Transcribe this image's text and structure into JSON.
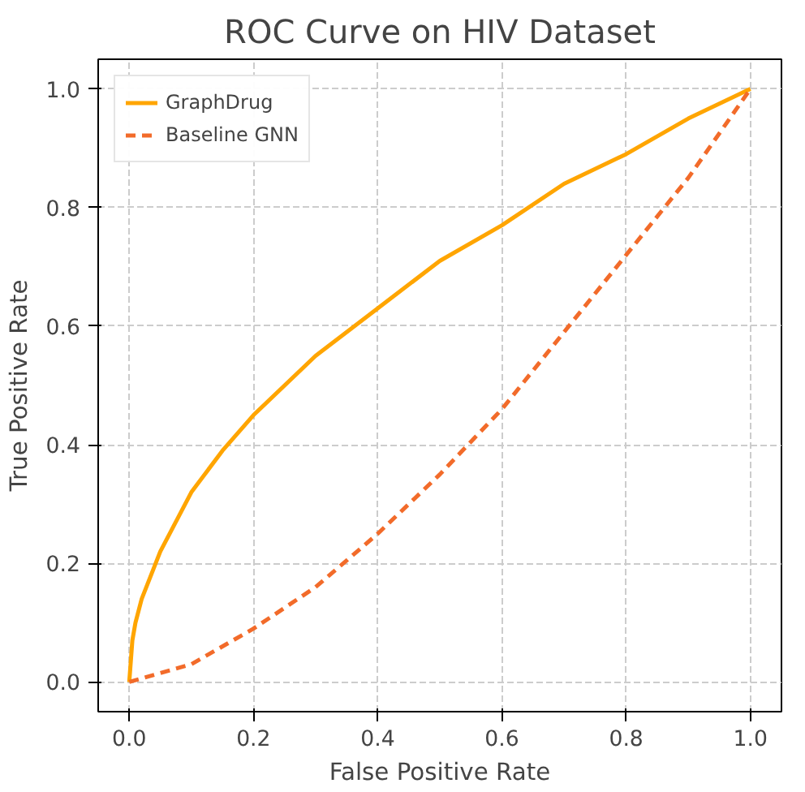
{
  "chart_data": {
    "type": "line",
    "title": "ROC Curve on HIV Dataset",
    "xlabel": "False Positive Rate",
    "ylabel": "True Positive Rate",
    "xlim": [
      -0.05,
      1.05
    ],
    "ylim": [
      -0.05,
      1.05
    ],
    "xticks": [
      {
        "value": 0,
        "label": "0.0"
      },
      0.2,
      0.4,
      0.6,
      0.8,
      {
        "value": 1,
        "label": "1.0"
      }
    ],
    "yticks": [
      {
        "value": 0,
        "label": "0.0"
      },
      0.2,
      0.4,
      0.6,
      0.8,
      {
        "value": 1,
        "label": "1.0"
      }
    ],
    "grid": true,
    "legend": "top left",
    "series": [
      {
        "name": "GraphDrug",
        "color": "#ffa500",
        "line_style": "solid",
        "x": [
          0,
          0.005,
          0.01,
          0.02,
          0.05,
          0.1,
          0.15,
          0.2,
          0.3,
          0.4,
          0.5,
          0.6,
          0.7,
          0.8,
          0.9,
          1
        ],
        "values": [
          0,
          0.07,
          0.1,
          0.14,
          0.22,
          0.32,
          0.39,
          0.45,
          0.55,
          0.63,
          0.71,
          0.77,
          0.84,
          0.89,
          0.95,
          1
        ]
      },
      {
        "name": "Baseline GNN",
        "color": "#f26b2a",
        "line_style": "dashed",
        "x": [
          0,
          0.1,
          0.2,
          0.3,
          0.4,
          0.5,
          0.6,
          0.7,
          0.8,
          0.9,
          1
        ],
        "values": [
          0,
          0.03,
          0.09,
          0.16,
          0.25,
          0.35,
          0.46,
          0.59,
          0.72,
          0.85,
          1
        ]
      }
    ]
  }
}
